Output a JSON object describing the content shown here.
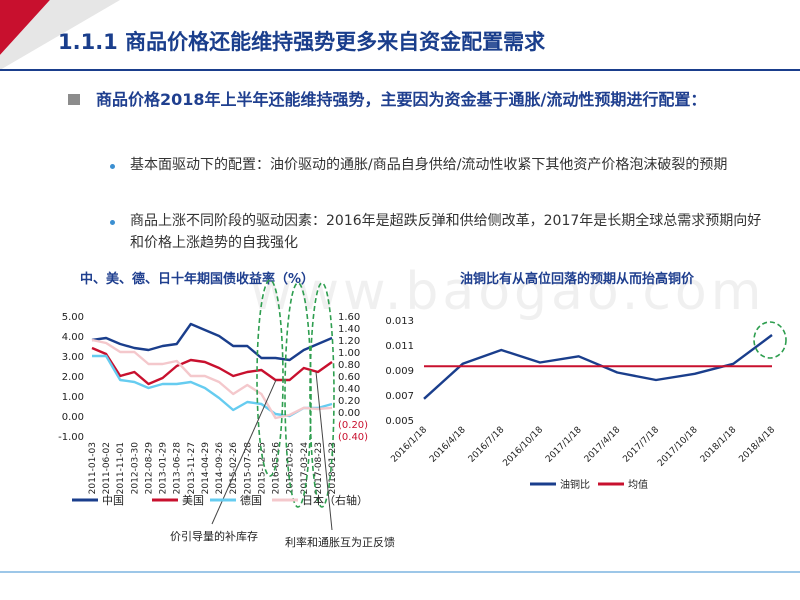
{
  "slide": {
    "title": "1.1.1 商品价格还能维持强势更多来自资金配置需求",
    "lead": "商品价格2018年上半年还能维持强势，主要因为资金基于通胀/流动性预期进行配置：",
    "bullets": [
      "基本面驱动下的配置：油价驱动的通胀/商品自身供给/流动性收紧下其他资产价格泡沫破裂的预期",
      "商品上涨不同阶段的驱动因素：2016年是超跌反弹和供给侧改革，2017年是长期全球总需求预期向好和价格上涨趋势的自我强化"
    ],
    "watermark": "www.baogao.com",
    "annotations": [
      "价引导量的补库存",
      "利率和通胀互为正反馈"
    ],
    "colors": {
      "navy": "#1a3e8c",
      "red": "#c8102e",
      "lightblue": "#66ccf0",
      "pink": "#f4c8cc",
      "green": "#2e9e4f"
    }
  },
  "chart_data": [
    {
      "type": "line",
      "title": "中、美、德、日十年期国债收益率（%）",
      "x": [
        "2011-01-03",
        "2011-06-02",
        "2011-11-01",
        "2012-03-30",
        "2012-08-29",
        "2013-01-29",
        "2013-06-28",
        "2013-11-27",
        "2014-04-29",
        "2014-09-26",
        "2015-02-26",
        "2015-07-28",
        "2015-12-25",
        "2016-05-26",
        "2016-10-25",
        "2017-03-24",
        "2017-08-23",
        "2018-01-23"
      ],
      "y_ticks_left": [
        "5.00",
        "4.00",
        "3.00",
        "2.00",
        "1.00",
        "0.00",
        "-1.00"
      ],
      "y_ticks_right": [
        "1.60",
        "1.40",
        "1.20",
        "1.00",
        "0.80",
        "0.60",
        "0.40",
        "0.20",
        "0.00",
        "(0.20)",
        "(0.40)"
      ],
      "ylim_left": [
        -1,
        5
      ],
      "ylim_right": [
        -0.4,
        1.6
      ],
      "legend_position": "bottom",
      "series": [
        {
          "name": "中国",
          "axis": "left",
          "values": [
            3.8,
            3.9,
            3.6,
            3.4,
            3.3,
            3.5,
            3.6,
            4.6,
            4.3,
            4.0,
            3.5,
            3.5,
            2.9,
            2.9,
            2.8,
            3.3,
            3.6,
            3.9
          ]
        },
        {
          "name": "美国",
          "axis": "left",
          "values": [
            3.4,
            3.1,
            2.0,
            2.2,
            1.6,
            1.9,
            2.5,
            2.8,
            2.7,
            2.4,
            2.0,
            2.2,
            2.3,
            1.8,
            1.8,
            2.4,
            2.2,
            2.7
          ]
        },
        {
          "name": "德国",
          "axis": "left",
          "values": [
            3.0,
            3.0,
            1.8,
            1.7,
            1.4,
            1.6,
            1.6,
            1.7,
            1.4,
            0.9,
            0.3,
            0.7,
            0.6,
            0.1,
            0.0,
            0.4,
            0.4,
            0.6
          ]
        },
        {
          "name": "日本（右轴）",
          "axis": "right",
          "values": [
            1.2,
            1.15,
            1.0,
            1.0,
            0.8,
            0.8,
            0.85,
            0.6,
            0.6,
            0.5,
            0.3,
            0.45,
            0.3,
            -0.1,
            -0.05,
            0.07,
            0.05,
            0.07
          ]
        }
      ]
    },
    {
      "type": "line",
      "title": "油铜比有从高位回落的预期从而抬高铜价",
      "x": [
        "2016/1/18",
        "2016/4/18",
        "2016/7/18",
        "2016/10/18",
        "2017/1/18",
        "2017/4/18",
        "2017/7/18",
        "2017/10/18",
        "2018/1/18",
        "2018/4/18"
      ],
      "y_ticks": [
        "0.013",
        "0.011",
        "0.009",
        "0.007",
        "0.005"
      ],
      "ylim": [
        0.005,
        0.013
      ],
      "legend_position": "bottom",
      "series": [
        {
          "name": "油铜比",
          "values": [
            0.0067,
            0.0095,
            0.0106,
            0.0096,
            0.0101,
            0.0088,
            0.0082,
            0.0087,
            0.0095,
            0.0118
          ]
        },
        {
          "name": "均值",
          "values": [
            0.0093,
            0.0093,
            0.0093,
            0.0093,
            0.0093,
            0.0093,
            0.0093,
            0.0093,
            0.0093,
            0.0093
          ]
        }
      ]
    }
  ]
}
